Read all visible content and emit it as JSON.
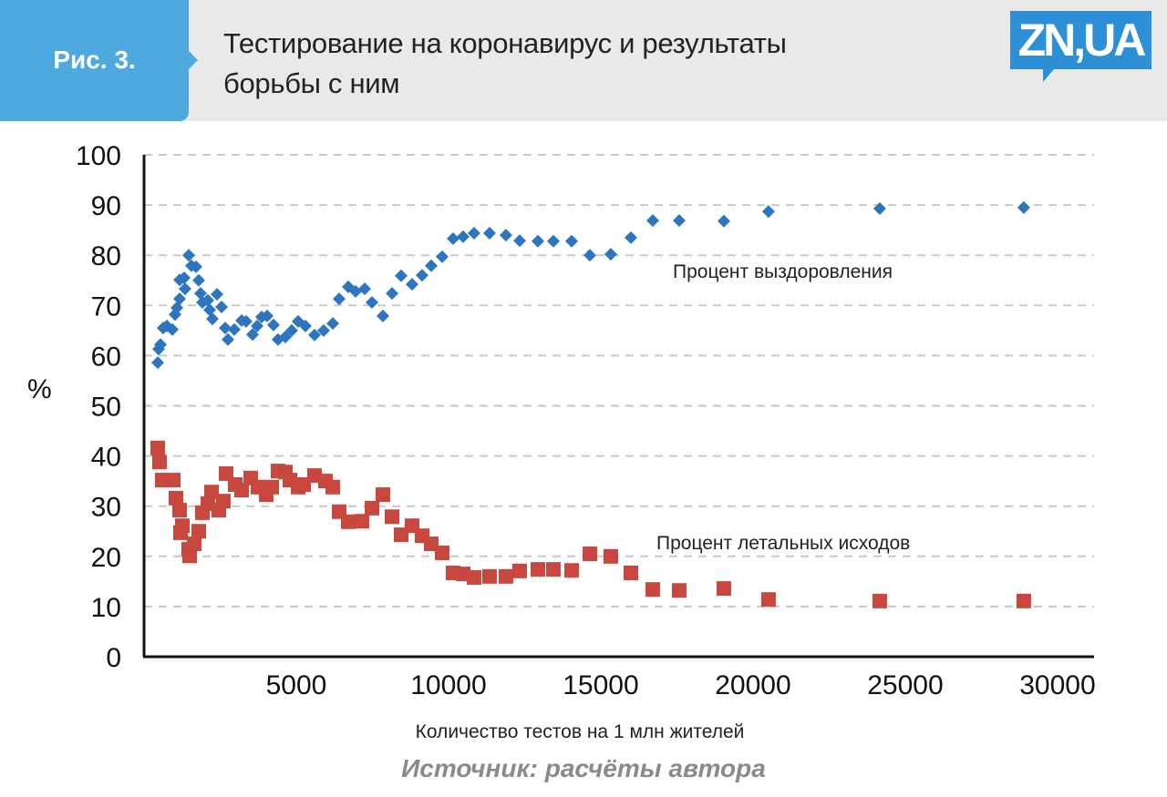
{
  "header": {
    "figure_label": "Рис. 3.",
    "title_line1": "Тестирование на коронавирус и результаты",
    "title_line2": "борьбы с ним",
    "logo_text": "ZN,UA"
  },
  "source": "Источник: расчёты автора",
  "colors": {
    "recovery": "#2e75c0",
    "fatal": "#c8473f",
    "tab": "#4ea9de",
    "grid": "#c8c8c8"
  },
  "chart_data": {
    "type": "scatter",
    "title": "Тестирование на коронавирус и результаты борьбы с ним",
    "xlabel": "Количество тестов на 1 млн жителей",
    "ylabel": "%",
    "xlim": [
      0,
      31200
    ],
    "ylim": [
      0,
      100
    ],
    "xticks": [
      5000,
      10000,
      15000,
      20000,
      25000,
      30000
    ],
    "yticks": [
      0,
      10,
      20,
      30,
      40,
      50,
      60,
      70,
      80,
      90,
      100
    ],
    "grid": "horizontal-dashed",
    "series": [
      {
        "name": "Процент выздоровления",
        "marker": "diamond",
        "x": [
          449,
          479,
          539,
          629,
          749,
          928,
          1018,
          1078,
          1168,
          1168,
          1317,
          1347,
          1467,
          1557,
          1707,
          1796,
          1856,
          1916,
          2096,
          2156,
          2246,
          2395,
          2545,
          2665,
          2754,
          2964,
          3204,
          3353,
          3563,
          3713,
          3862,
          4042,
          4251,
          4401,
          4641,
          4850,
          5060,
          5299,
          5599,
          5898,
          6198,
          6407,
          6707,
          6946,
          7246,
          7485,
          7844,
          8144,
          8443,
          8802,
          9132,
          9431,
          9790,
          10150,
          10479,
          10838,
          11347,
          11886,
          12335,
          12934,
          13443,
          14042,
          14641,
          15329,
          15988,
          16707,
          17575,
          19042,
          20509,
          24162,
          28892
        ],
        "y": [
          58.6,
          61.3,
          62.2,
          65.5,
          65.9,
          65.2,
          68.2,
          69.5,
          71.3,
          75.1,
          75.5,
          73.3,
          80.0,
          77.9,
          77.7,
          75.0,
          72.4,
          70.6,
          71.0,
          69.1,
          67.3,
          72.2,
          69.7,
          65.5,
          63.2,
          65.2,
          67.0,
          66.8,
          64.2,
          65.9,
          67.7,
          67.9,
          66.1,
          63.2,
          63.7,
          65.0,
          66.8,
          65.9,
          64.1,
          65.0,
          66.4,
          71.3,
          73.7,
          72.8,
          73.3,
          70.6,
          67.9,
          72.4,
          75.9,
          74.2,
          76.0,
          77.9,
          79.7,
          83.3,
          83.7,
          84.4,
          84.4,
          84.0,
          82.9,
          82.8,
          82.8,
          82.8,
          80.0,
          80.2,
          83.5,
          86.9,
          86.9,
          86.8,
          88.7,
          89.3,
          89.5
        ]
      },
      {
        "name": "Процент летальных исходов",
        "marker": "square",
        "x": [
          449,
          509,
          599,
          958,
          1048,
          1168,
          1198,
          1257,
          1467,
          1497,
          1647,
          1796,
          1916,
          2096,
          2216,
          2455,
          2605,
          2695,
          2994,
          3204,
          3503,
          3743,
          4012,
          4192,
          4401,
          4641,
          4790,
          5060,
          5240,
          5599,
          5958,
          6198,
          6407,
          6707,
          7156,
          7485,
          7844,
          8144,
          8443,
          8802,
          9132,
          9431,
          9790,
          10150,
          10479,
          10838,
          11347,
          11886,
          12335,
          12934,
          13443,
          14042,
          14641,
          15329,
          15988,
          16707,
          17575,
          19042,
          20509,
          24162,
          28892
        ],
        "y": [
          41.6,
          38.8,
          35.2,
          35.2,
          31.6,
          29.2,
          24.7,
          26.1,
          21.4,
          20.1,
          22.5,
          25.0,
          28.7,
          30.5,
          32.8,
          29.2,
          31.0,
          36.5,
          34.3,
          33.2,
          35.6,
          33.8,
          32.3,
          33.8,
          37.0,
          36.8,
          35.2,
          33.8,
          34.3,
          36.1,
          35.0,
          33.8,
          28.9,
          26.9,
          27.0,
          29.6,
          32.3,
          27.9,
          24.3,
          26.1,
          24.1,
          22.5,
          20.7,
          16.7,
          16.5,
          15.8,
          16.0,
          16.0,
          17.1,
          17.4,
          17.4,
          17.2,
          20.5,
          20.0,
          16.7,
          13.4,
          13.2,
          13.6,
          11.4,
          11.1,
          11.1
        ]
      }
    ]
  }
}
